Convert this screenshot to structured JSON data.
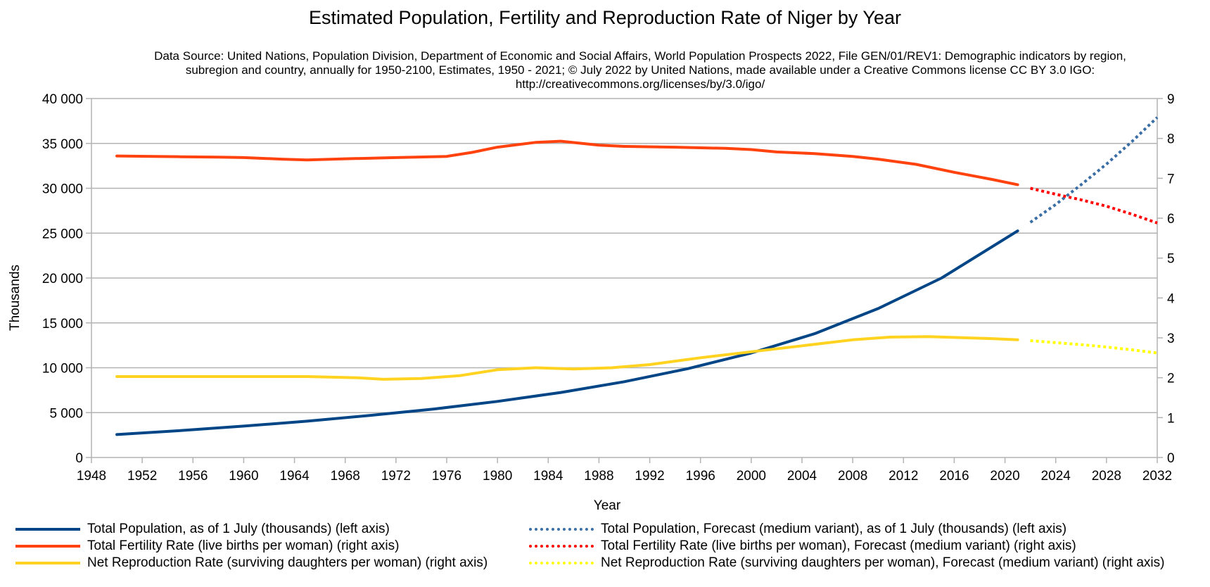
{
  "chart_data": {
    "type": "line",
    "title": "Estimated Population, Fertility and Reproduction Rate of Niger by Year",
    "subtitle": "Data Source: United Nations, Population Division, Department of Economic and Social Affairs, World Population Prospects 2022, File GEN/01/REV1: Demographic indicators by region, subregion and country, annually for 1950-2100, Estimates, 1950 - 2021; © July 2022 by United Nations, made available under a Creative Commons license CC BY 3.0 IGO: http://creativecommons.org/licenses/by/3.0/igo/",
    "xlabel": "Year",
    "ylabel": "Thousands",
    "y2label": "",
    "xlim": [
      1948,
      2032
    ],
    "ylim": [
      0,
      40000
    ],
    "y2lim": [
      0,
      9
    ],
    "x_ticks": [
      "1948",
      "1952",
      "1956",
      "1960",
      "1964",
      "1968",
      "1972",
      "1976",
      "1980",
      "1984",
      "1988",
      "1992",
      "1996",
      "2000",
      "2004",
      "2008",
      "2012",
      "2016",
      "2020",
      "2024",
      "2028",
      "2032"
    ],
    "y_ticks": [
      "0",
      "5 000",
      "10 000",
      "15 000",
      "20 000",
      "25 000",
      "30 000",
      "35 000",
      "40 000"
    ],
    "y2_ticks": [
      "0",
      "1",
      "2",
      "3",
      "4",
      "5",
      "6",
      "7",
      "8",
      "9"
    ],
    "grid": true,
    "legend_position": "bottom",
    "series": [
      {
        "name": "Total Population, as of 1 July (thousands) (left axis)",
        "axis": "left",
        "color": "#004586",
        "style": "solid",
        "points": [
          [
            1950,
            2560
          ],
          [
            1955,
            3000
          ],
          [
            1960,
            3500
          ],
          [
            1965,
            4050
          ],
          [
            1970,
            4700
          ],
          [
            1975,
            5400
          ],
          [
            1980,
            6250
          ],
          [
            1985,
            7250
          ],
          [
            1990,
            8450
          ],
          [
            1995,
            9900
          ],
          [
            2000,
            11650
          ],
          [
            2005,
            13800
          ],
          [
            2010,
            16600
          ],
          [
            2015,
            20000
          ],
          [
            2021,
            25250
          ]
        ]
      },
      {
        "name": "Total Fertility Rate (live births per woman) (right axis)",
        "axis": "right",
        "color": "#ff420e",
        "style": "solid",
        "points": [
          [
            1950,
            7.56
          ],
          [
            1953,
            7.55
          ],
          [
            1955,
            7.54
          ],
          [
            1958,
            7.53
          ],
          [
            1960,
            7.52
          ],
          [
            1963,
            7.48
          ],
          [
            1965,
            7.46
          ],
          [
            1968,
            7.49
          ],
          [
            1972,
            7.52
          ],
          [
            1976,
            7.55
          ],
          [
            1978,
            7.65
          ],
          [
            1980,
            7.78
          ],
          [
            1983,
            7.9
          ],
          [
            1985,
            7.93
          ],
          [
            1988,
            7.83
          ],
          [
            1990,
            7.8
          ],
          [
            1994,
            7.78
          ],
          [
            1998,
            7.75
          ],
          [
            2000,
            7.72
          ],
          [
            2002,
            7.66
          ],
          [
            2005,
            7.62
          ],
          [
            2008,
            7.55
          ],
          [
            2010,
            7.48
          ],
          [
            2013,
            7.35
          ],
          [
            2016,
            7.15
          ],
          [
            2019,
            6.97
          ],
          [
            2021,
            6.84
          ]
        ]
      },
      {
        "name": "Net Reproduction Rate (surviving daughters per woman) (right axis)",
        "axis": "right",
        "color": "#ffd320",
        "style": "solid",
        "points": [
          [
            1950,
            2.03
          ],
          [
            1955,
            2.03
          ],
          [
            1960,
            2.03
          ],
          [
            1965,
            2.03
          ],
          [
            1969,
            2.0
          ],
          [
            1971,
            1.96
          ],
          [
            1974,
            1.98
          ],
          [
            1977,
            2.05
          ],
          [
            1980,
            2.2
          ],
          [
            1983,
            2.25
          ],
          [
            1986,
            2.22
          ],
          [
            1989,
            2.25
          ],
          [
            1992,
            2.33
          ],
          [
            1996,
            2.5
          ],
          [
            2000,
            2.65
          ],
          [
            2004,
            2.8
          ],
          [
            2008,
            2.95
          ],
          [
            2011,
            3.02
          ],
          [
            2014,
            3.03
          ],
          [
            2017,
            3.0
          ],
          [
            2019,
            2.98
          ],
          [
            2021,
            2.95
          ]
        ]
      },
      {
        "name": "Total Population, Forecast (medium variant), as of 1 July (thousands) (left axis)",
        "axis": "left",
        "color": "#3a6ea5",
        "style": "dotted",
        "points": [
          [
            2022,
            26200
          ],
          [
            2024,
            28200
          ],
          [
            2026,
            30400
          ],
          [
            2028,
            32700
          ],
          [
            2030,
            35200
          ],
          [
            2032,
            37900
          ]
        ]
      },
      {
        "name": "Total Fertility Rate (live births per woman), Forecast (medium variant) (right axis)",
        "axis": "right",
        "color": "#ff0000",
        "style": "dotted",
        "points": [
          [
            2022,
            6.75
          ],
          [
            2024,
            6.6
          ],
          [
            2026,
            6.46
          ],
          [
            2028,
            6.3
          ],
          [
            2030,
            6.1
          ],
          [
            2032,
            5.88
          ]
        ]
      },
      {
        "name": "Net Reproduction Rate (surviving daughters per woman), Forecast (medium variant) (right axis)",
        "axis": "right",
        "color": "#ffff00",
        "style": "dotted",
        "points": [
          [
            2022,
            2.93
          ],
          [
            2024,
            2.88
          ],
          [
            2026,
            2.83
          ],
          [
            2028,
            2.77
          ],
          [
            2030,
            2.7
          ],
          [
            2032,
            2.62
          ]
        ]
      }
    ]
  }
}
